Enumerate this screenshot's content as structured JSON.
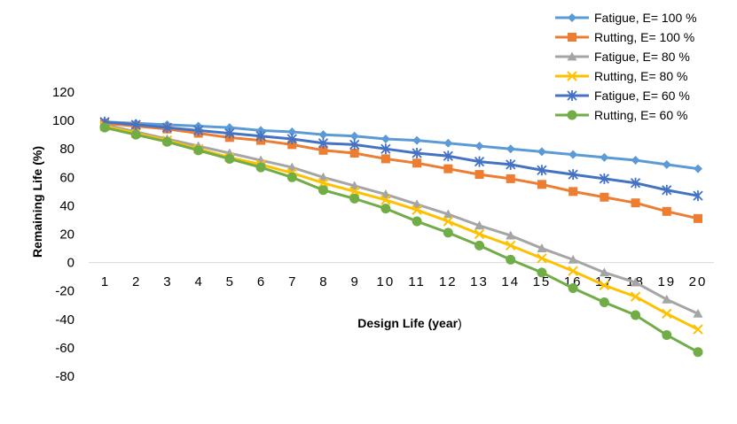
{
  "chart_data": {
    "type": "line",
    "title": "",
    "xlabel_main": "Design Life (year",
    "xlabel_paren": ")",
    "ylabel": "Remaining Life (%)",
    "ylim": [
      -80,
      120
    ],
    "yticks": [
      120,
      100,
      80,
      60,
      40,
      20,
      0,
      -20,
      -40,
      -60,
      -80
    ],
    "categories": [
      "1",
      "2",
      "3",
      "4",
      "5",
      "6",
      "7",
      "8",
      "9",
      "10",
      "11",
      "12",
      "13",
      "14",
      "15",
      "16",
      "17",
      "18",
      "19",
      "20"
    ],
    "legend_position": "top-right",
    "series": [
      {
        "name": "Fatigue, E= 100 %",
        "color": "#5b9bd5",
        "marker": "diamond",
        "values": [
          99,
          98,
          97,
          96,
          95,
          93,
          92,
          90,
          89,
          87,
          86,
          84,
          82,
          80,
          78,
          76,
          74,
          72,
          69,
          66
        ]
      },
      {
        "name": "Rutting, E= 100 %",
        "color": "#ed7d31",
        "marker": "square",
        "values": [
          98,
          96,
          94,
          91,
          88,
          86,
          83,
          79,
          77,
          73,
          70,
          66,
          62,
          59,
          55,
          50,
          46,
          42,
          36,
          31
        ]
      },
      {
        "name": "Fatigue, E= 80 %",
        "color": "#a5a5a5",
        "marker": "triangle",
        "values": [
          97,
          92,
          87,
          82,
          77,
          72,
          67,
          60,
          54,
          48,
          41,
          34,
          26,
          19,
          10,
          2,
          -7,
          -14,
          -26,
          -36
        ]
      },
      {
        "name": "Rutting, E= 80 %",
        "color": "#ffc000",
        "marker": "x",
        "values": [
          96,
          91,
          86,
          80,
          74,
          69,
          63,
          56,
          50,
          44,
          37,
          29,
          20,
          12,
          3,
          -6,
          -16,
          -24,
          -36,
          -47
        ]
      },
      {
        "name": "Fatigue, E= 60 %",
        "color": "#4472c4",
        "marker": "asterisk",
        "values": [
          99,
          97,
          95,
          93,
          91,
          89,
          87,
          84,
          83,
          80,
          77,
          75,
          71,
          69,
          65,
          62,
          59,
          56,
          51,
          47
        ]
      },
      {
        "name": "Rutting, E= 60 %",
        "color": "#70ad47",
        "marker": "circle",
        "values": [
          95,
          90,
          85,
          79,
          73,
          67,
          60,
          51,
          45,
          38,
          29,
          21,
          12,
          2,
          -7,
          -18,
          -28,
          -37,
          -51,
          -63
        ]
      }
    ]
  }
}
